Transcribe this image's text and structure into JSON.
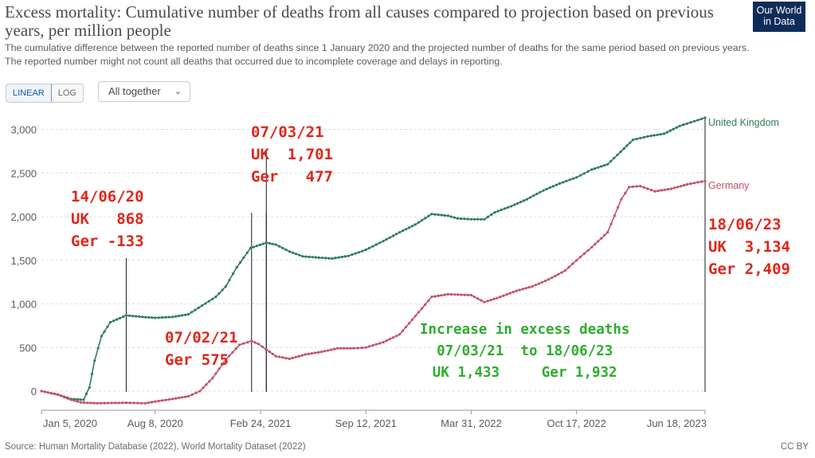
{
  "header": {
    "title": "Excess mortality: Cumulative number of deaths from all causes compared to projection based on previous years, per million people",
    "subtitle": "The cumulative difference between the reported number of deaths since 1 January 2020 and the projected number of deaths for the same period based on previous years. The reported number might not count all deaths that occurred due to incomplete coverage and delays in reporting.",
    "logo_line1": "Our World",
    "logo_line2": "in Data"
  },
  "controls": {
    "linear_label": "LINEAR",
    "log_label": "LOG",
    "dropdown_label": "All together",
    "dropdown_icon": "chevron-down-icon"
  },
  "footer": {
    "source": "Source: Human Mortality Database (2022), World Mortality Dataset (2022)",
    "license": "CC BY"
  },
  "annotations": {
    "a1": "14/06/20\nUK   868\nGer -133",
    "a2": "07/03/21\nUK  1,701\nGer   477",
    "a3": "07/02/21\nGer 575",
    "a4": "18/06/23\nUK  3,134\nGer 2,409",
    "a5": "Increase in excess deaths\n07/03/21  to 18/06/23\nUK 1,433     Ger 1,932"
  },
  "colors": {
    "uk": "#2e7d57",
    "germany": "#c25068",
    "annotation_red": "#e0261b",
    "annotation_green": "#2cae2c",
    "logo_bg": "#0f2c59"
  },
  "chart_data": {
    "type": "line",
    "y_ticks": [
      "0",
      "500",
      "1,000",
      "1,500",
      "2,000",
      "2,500",
      "3,000"
    ],
    "x_ticks": [
      "Jan 5, 2020",
      "Aug 8, 2020",
      "Feb 24, 2021",
      "Sep 12, 2021",
      "Mar 31, 2022",
      "Oct 17, 2022",
      "Jun 18, 2023"
    ],
    "ylim": [
      -250,
      3150
    ],
    "grid": true,
    "series": [
      {
        "name": "United Kingdom",
        "color": "#2e7d57",
        "points": [
          [
            "2020-01-05",
            0
          ],
          [
            "2020-02-05",
            -40
          ],
          [
            "2020-03-01",
            -90
          ],
          [
            "2020-03-25",
            -100
          ],
          [
            "2020-04-05",
            40
          ],
          [
            "2020-04-15",
            350
          ],
          [
            "2020-04-28",
            630
          ],
          [
            "2020-05-15",
            790
          ],
          [
            "2020-06-14",
            868
          ],
          [
            "2020-07-15",
            850
          ],
          [
            "2020-08-08",
            840
          ],
          [
            "2020-09-10",
            850
          ],
          [
            "2020-10-10",
            880
          ],
          [
            "2020-11-05",
            980
          ],
          [
            "2020-12-01",
            1080
          ],
          [
            "2020-12-20",
            1200
          ],
          [
            "2021-01-10",
            1420
          ],
          [
            "2021-02-05",
            1640
          ],
          [
            "2021-03-07",
            1701
          ],
          [
            "2021-03-25",
            1680
          ],
          [
            "2021-04-20",
            1600
          ],
          [
            "2021-05-15",
            1545
          ],
          [
            "2021-06-15",
            1530
          ],
          [
            "2021-07-10",
            1520
          ],
          [
            "2021-08-10",
            1550
          ],
          [
            "2021-09-12",
            1620
          ],
          [
            "2021-10-15",
            1720
          ],
          [
            "2021-11-15",
            1820
          ],
          [
            "2021-12-15",
            1910
          ],
          [
            "2022-01-15",
            2030
          ],
          [
            "2022-02-15",
            2010
          ],
          [
            "2022-03-05",
            1980
          ],
          [
            "2022-03-31",
            1970
          ],
          [
            "2022-04-25",
            1970
          ],
          [
            "2022-05-15",
            2050
          ],
          [
            "2022-06-15",
            2120
          ],
          [
            "2022-07-15",
            2200
          ],
          [
            "2022-08-15",
            2300
          ],
          [
            "2022-09-15",
            2380
          ],
          [
            "2022-10-17",
            2450
          ],
          [
            "2022-11-15",
            2540
          ],
          [
            "2022-12-15",
            2600
          ],
          [
            "2023-01-15",
            2780
          ],
          [
            "2023-02-01",
            2880
          ],
          [
            "2023-03-01",
            2920
          ],
          [
            "2023-04-01",
            2950
          ],
          [
            "2023-05-01",
            3040
          ],
          [
            "2023-06-18",
            3134
          ]
        ]
      },
      {
        "name": "Germany",
        "color": "#c25068",
        "points": [
          [
            "2020-01-05",
            0
          ],
          [
            "2020-02-05",
            -40
          ],
          [
            "2020-03-01",
            -100
          ],
          [
            "2020-03-20",
            -130
          ],
          [
            "2020-04-20",
            -140
          ],
          [
            "2020-06-14",
            -133
          ],
          [
            "2020-07-20",
            -140
          ],
          [
            "2020-08-08",
            -120
          ],
          [
            "2020-09-10",
            -90
          ],
          [
            "2020-10-10",
            -60
          ],
          [
            "2020-11-01",
            0
          ],
          [
            "2020-11-25",
            150
          ],
          [
            "2020-12-20",
            360
          ],
          [
            "2021-01-15",
            530
          ],
          [
            "2021-02-07",
            575
          ],
          [
            "2021-02-20",
            540
          ],
          [
            "2021-03-07",
            477
          ],
          [
            "2021-03-25",
            400
          ],
          [
            "2021-04-20",
            370
          ],
          [
            "2021-05-20",
            420
          ],
          [
            "2021-06-20",
            450
          ],
          [
            "2021-07-20",
            490
          ],
          [
            "2021-08-20",
            490
          ],
          [
            "2021-09-12",
            500
          ],
          [
            "2021-10-15",
            560
          ],
          [
            "2021-11-15",
            650
          ],
          [
            "2021-12-15",
            860
          ],
          [
            "2022-01-15",
            1080
          ],
          [
            "2022-02-15",
            1110
          ],
          [
            "2022-03-31",
            1100
          ],
          [
            "2022-04-25",
            1020
          ],
          [
            "2022-05-25",
            1080
          ],
          [
            "2022-06-25",
            1150
          ],
          [
            "2022-07-25",
            1200
          ],
          [
            "2022-08-25",
            1280
          ],
          [
            "2022-09-25",
            1380
          ],
          [
            "2022-10-17",
            1500
          ],
          [
            "2022-11-15",
            1650
          ],
          [
            "2022-12-15",
            1820
          ],
          [
            "2023-01-10",
            2200
          ],
          [
            "2023-01-25",
            2340
          ],
          [
            "2023-02-15",
            2350
          ],
          [
            "2023-03-15",
            2290
          ],
          [
            "2023-04-15",
            2320
          ],
          [
            "2023-05-15",
            2370
          ],
          [
            "2023-06-18",
            2409
          ]
        ]
      }
    ],
    "vlines": [
      "2020-06-14",
      "2021-02-07",
      "2021-03-07",
      "2023-06-18"
    ]
  }
}
